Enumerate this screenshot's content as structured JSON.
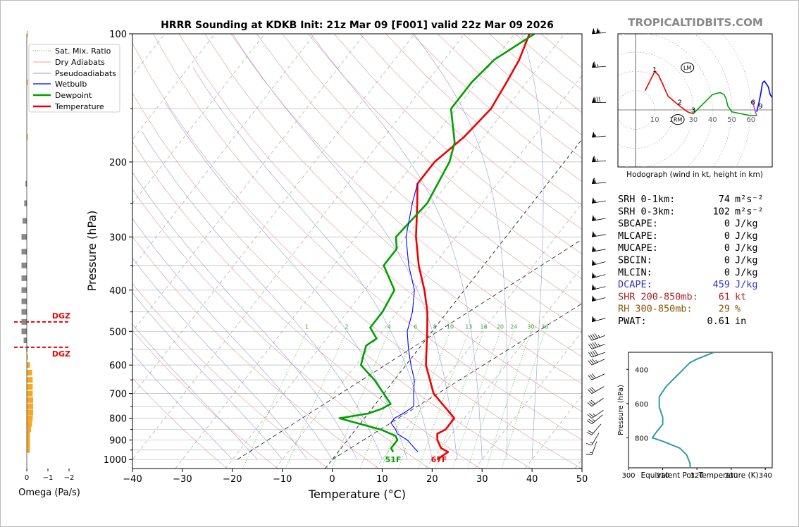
{
  "watermark": "TROPICALTIDBITS.COM",
  "chart_data": [
    {
      "type": "line",
      "title": "HRRR Sounding at KDKB Init: 21z Mar 09 [F001] valid 22z Mar 09 2026",
      "xlabel": "Temperature (°C)",
      "ylabel": "Pressure (hPa)",
      "xlim": [
        -40,
        50
      ],
      "ylim": [
        1050,
        100
      ],
      "y_scale": "log",
      "x_ticks": [
        "−40",
        "−30",
        "−20",
        "−10",
        "0",
        "10",
        "20",
        "30",
        "40",
        "50"
      ],
      "y_ticks": [
        "100",
        "200",
        "300",
        "400",
        "500",
        "600",
        "700",
        "800",
        "900",
        "1000"
      ],
      "legend_position": "top-left",
      "legend": [
        "Sat. Mix. Ratio",
        "Dry Adiabats",
        "Pseudoadiabats",
        "Wetbulb",
        "Dewpoint",
        "Temperature"
      ],
      "mixing_ratio_labels": [
        "1",
        "2",
        "4",
        "6",
        "8",
        "10",
        "13",
        "16",
        "20",
        "24",
        "30",
        "36"
      ],
      "surface_labels": {
        "dewpoint": "51F",
        "temperature": "67F"
      },
      "series": [
        {
          "name": "Temperature",
          "color": "#ee0000",
          "points": [
            [
              1000,
              21
            ],
            [
              960,
              22
            ],
            [
              940,
              20
            ],
            [
              900,
              18
            ],
            [
              870,
              17
            ],
            [
              850,
              18
            ],
            [
              800,
              18
            ],
            [
              700,
              10
            ],
            [
              600,
              4
            ],
            [
              500,
              -1
            ],
            [
              450,
              -4
            ],
            [
              400,
              -8
            ],
            [
              350,
              -13
            ],
            [
              300,
              -18
            ],
            [
              250,
              -23
            ],
            [
              225,
              -26
            ],
            [
              200,
              -26
            ],
            [
              175,
              -24
            ],
            [
              150,
              -23
            ],
            [
              130,
              -24
            ],
            [
              115,
              -25
            ],
            [
              100,
              -27
            ]
          ]
        },
        {
          "name": "Dewpoint",
          "color": "#00a000",
          "points": [
            [
              960,
              11
            ],
            [
              940,
              10
            ],
            [
              900,
              10
            ],
            [
              880,
              9
            ],
            [
              850,
              5
            ],
            [
              810,
              -3
            ],
            [
              800,
              -5
            ],
            [
              780,
              0
            ],
            [
              760,
              2
            ],
            [
              740,
              3
            ],
            [
              700,
              0
            ],
            [
              650,
              -4
            ],
            [
              600,
              -9
            ],
            [
              570,
              -10
            ],
            [
              540,
              -11
            ],
            [
              520,
              -10
            ],
            [
              490,
              -13
            ],
            [
              450,
              -13
            ],
            [
              400,
              -14
            ],
            [
              350,
              -20
            ],
            [
              320,
              -20
            ],
            [
              300,
              -22
            ],
            [
              250,
              -21
            ],
            [
              200,
              -23
            ],
            [
              180,
              -25
            ],
            [
              150,
              -31
            ],
            [
              130,
              -31
            ],
            [
              115,
              -30
            ],
            [
              100,
              -26
            ]
          ]
        },
        {
          "name": "Wetbulb",
          "color": "#0000ff",
          "points": [
            [
              960,
              16
            ],
            [
              930,
              14
            ],
            [
              900,
              12
            ],
            [
              870,
              9
            ],
            [
              850,
              8
            ],
            [
              820,
              6
            ],
            [
              800,
              6
            ],
            [
              780,
              7
            ],
            [
              750,
              8
            ],
            [
              700,
              6
            ],
            [
              650,
              4
            ],
            [
              600,
              1
            ],
            [
              550,
              -2
            ],
            [
              500,
              -5
            ],
            [
              450,
              -7
            ],
            [
              400,
              -10
            ],
            [
              350,
              -15
            ],
            [
              300,
              -20
            ],
            [
              250,
              -24
            ],
            [
              225,
              -26
            ]
          ]
        }
      ],
      "dgz": [
        {
          "label": "DGZ",
          "pressure": 475
        },
        {
          "label": "DGZ",
          "pressure": 545
        }
      ],
      "wind_barbs": [
        {
          "p": 100,
          "dir": 265,
          "kt": 105
        },
        {
          "p": 120,
          "dir": 265,
          "kt": 65
        },
        {
          "p": 145,
          "dir": 270,
          "kt": 80
        },
        {
          "p": 175,
          "dir": 265,
          "kt": 55
        },
        {
          "p": 200,
          "dir": 265,
          "kt": 65
        },
        {
          "p": 225,
          "dir": 265,
          "kt": 60
        },
        {
          "p": 250,
          "dir": 260,
          "kt": 55
        },
        {
          "p": 275,
          "dir": 260,
          "kt": 55
        },
        {
          "p": 300,
          "dir": 260,
          "kt": 55
        },
        {
          "p": 325,
          "dir": 260,
          "kt": 55
        },
        {
          "p": 350,
          "dir": 255,
          "kt": 55
        },
        {
          "p": 375,
          "dir": 255,
          "kt": 55
        },
        {
          "p": 400,
          "dir": 255,
          "kt": 55
        },
        {
          "p": 425,
          "dir": 255,
          "kt": 55
        },
        {
          "p": 475,
          "dir": 255,
          "kt": 55
        },
        {
          "p": 525,
          "dir": 250,
          "kt": 45
        },
        {
          "p": 550,
          "dir": 250,
          "kt": 45
        },
        {
          "p": 575,
          "dir": 250,
          "kt": 40
        },
        {
          "p": 600,
          "dir": 245,
          "kt": 35
        },
        {
          "p": 650,
          "dir": 245,
          "kt": 30
        },
        {
          "p": 700,
          "dir": 240,
          "kt": 30
        },
        {
          "p": 750,
          "dir": 235,
          "kt": 30
        },
        {
          "p": 800,
          "dir": 235,
          "kt": 25
        },
        {
          "p": 825,
          "dir": 230,
          "kt": 25
        },
        {
          "p": 875,
          "dir": 220,
          "kt": 20
        },
        {
          "p": 925,
          "dir": 210,
          "kt": 15
        },
        {
          "p": 975,
          "dir": 200,
          "kt": 15
        }
      ]
    },
    {
      "type": "bar",
      "xlabel": "Omega (Pa/s)",
      "xlim": [
        0,
        -2
      ],
      "x_ticks": [
        "0",
        "−1",
        "−2"
      ],
      "bars": [
        {
          "p": 100,
          "v": -0.05
        },
        {
          "p": 130,
          "v": -0.03
        },
        {
          "p": 175,
          "v": -0.02
        },
        {
          "p": 225,
          "v": 0.06
        },
        {
          "p": 250,
          "v": 0.12
        },
        {
          "p": 275,
          "v": 0.2
        },
        {
          "p": 300,
          "v": 0.25
        },
        {
          "p": 325,
          "v": 0.25
        },
        {
          "p": 350,
          "v": 0.25
        },
        {
          "p": 375,
          "v": 0.25
        },
        {
          "p": 400,
          "v": 0.25
        },
        {
          "p": 425,
          "v": 0.25
        },
        {
          "p": 450,
          "v": 0.25
        },
        {
          "p": 475,
          "v": 0.25
        },
        {
          "p": 500,
          "v": 0.25
        },
        {
          "p": 525,
          "v": 0.15
        },
        {
          "p": 550,
          "v": 0.02
        },
        {
          "p": 575,
          "v": -0.05
        },
        {
          "p": 600,
          "v": -0.15
        },
        {
          "p": 625,
          "v": -0.25
        },
        {
          "p": 650,
          "v": -0.28
        },
        {
          "p": 675,
          "v": -0.28
        },
        {
          "p": 700,
          "v": -0.28
        },
        {
          "p": 725,
          "v": -0.3
        },
        {
          "p": 750,
          "v": -0.3
        },
        {
          "p": 775,
          "v": -0.3
        },
        {
          "p": 800,
          "v": -0.28
        },
        {
          "p": 825,
          "v": -0.25
        },
        {
          "p": 850,
          "v": -0.2
        },
        {
          "p": 875,
          "v": -0.15
        },
        {
          "p": 900,
          "v": -0.15
        },
        {
          "p": 925,
          "v": -0.15
        },
        {
          "p": 950,
          "v": -0.15
        }
      ]
    },
    {
      "type": "scatter",
      "caption": "Hodograph (wind in kt, height in km)",
      "rings": [
        "10",
        "20",
        "30",
        "40",
        "50",
        "60"
      ],
      "markers": [
        "LM",
        "RM"
      ],
      "height_labels": [
        "1",
        "2",
        "3",
        "6",
        "9"
      ],
      "hodo": {
        "red": [
          [
            5,
            10
          ],
          [
            10,
            20
          ],
          [
            12,
            18
          ],
          [
            17,
            7
          ],
          [
            23,
            2
          ],
          [
            27,
            -1
          ],
          [
            30,
            -2
          ]
        ],
        "green": [
          [
            30,
            -2
          ],
          [
            35,
            3
          ],
          [
            40,
            8
          ],
          [
            44,
            9
          ],
          [
            46,
            8
          ],
          [
            47,
            6
          ],
          [
            48,
            2
          ],
          [
            50,
            -1
          ],
          [
            55,
            -2
          ],
          [
            60,
            -3
          ],
          [
            63,
            -3
          ]
        ],
        "magenta": [
          [
            63,
            -3
          ],
          [
            62,
            0
          ],
          [
            61,
            4
          ],
          [
            62,
            5
          ]
        ],
        "blue": [
          [
            63,
            -1
          ],
          [
            64,
            3
          ],
          [
            65,
            8
          ],
          [
            66,
            14
          ],
          [
            67,
            15
          ],
          [
            69,
            12
          ],
          [
            70,
            8
          ],
          [
            72,
            5
          ]
        ]
      },
      "hodo_labels": [
        {
          "t": "1",
          "u": 10,
          "v": 19
        },
        {
          "t": "2",
          "u": 23,
          "v": 2
        },
        {
          "t": "3",
          "u": 30,
          "v": -2
        },
        {
          "t": "6",
          "u": 61,
          "v": 2
        },
        {
          "t": "9",
          "u": 65,
          "v": 0
        }
      ],
      "lm": [
        27,
        22
      ],
      "rm": [
        22,
        -5
      ]
    },
    {
      "type": "line",
      "xlabel": "Equivalent Pot. Temperature (K)",
      "ylabel": "Pressure (hPa)",
      "xlim": [
        300,
        342
      ],
      "ylim": [
        975,
        300
      ],
      "x_ticks": [
        "300",
        "310",
        "320",
        "330",
        "340"
      ],
      "y_ticks": [
        "400",
        "600",
        "800"
      ],
      "series": [
        {
          "name": "",
          "color": "#3399aa",
          "points": [
            [
              325,
              300
            ],
            [
              320,
              340
            ],
            [
              318,
              360
            ],
            [
              316,
              400
            ],
            [
              314,
              440
            ],
            [
              311,
              500
            ],
            [
              309,
              560
            ],
            [
              309,
              620
            ],
            [
              310,
              680
            ],
            [
              310,
              720
            ],
            [
              308,
              770
            ],
            [
              307,
              800
            ],
            [
              310,
              820
            ],
            [
              315,
              860
            ],
            [
              317,
              900
            ],
            [
              318,
              950
            ],
            [
              318,
              975
            ]
          ]
        }
      ]
    }
  ],
  "indices": [
    {
      "label": "SRH 0-1km:",
      "value": "74",
      "unit": "m²s⁻²",
      "color": "#000000"
    },
    {
      "label": "SRH 0-3km:",
      "value": "102",
      "unit": "m²s⁻²",
      "color": "#000000"
    },
    {
      "label": "SBCAPE:",
      "value": "0",
      "unit": "J/kg",
      "color": "#000000"
    },
    {
      "label": "MLCAPE:",
      "value": "0",
      "unit": "J/kg",
      "color": "#000000"
    },
    {
      "label": "MUCAPE:",
      "value": "0",
      "unit": "J/kg",
      "color": "#000000"
    },
    {
      "label": "SBCIN:",
      "value": "0",
      "unit": "J/kg",
      "color": "#000000"
    },
    {
      "label": "MLCIN:",
      "value": "0",
      "unit": "J/kg",
      "color": "#000000"
    },
    {
      "label": "DCAPE:",
      "value": "459",
      "unit": "J/kg",
      "color": "#3333cc"
    },
    {
      "label": "SHR 200-850mb:",
      "value": "61",
      "unit": "kt",
      "color": "#aa2222"
    },
    {
      "label": "RH 300-850mb:",
      "value": "29",
      "unit": "%",
      "color": "#885500"
    },
    {
      "label": "PWAT:",
      "value": "0.61",
      "unit": "in",
      "color": "#000000"
    }
  ]
}
